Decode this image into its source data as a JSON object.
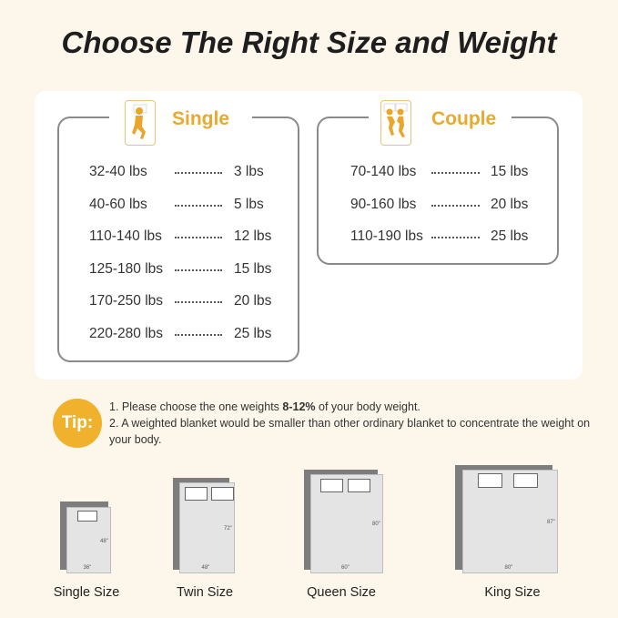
{
  "title": "Choose The Right Size and Weight",
  "accent_color": "#f0b12c",
  "single": {
    "label": "Single",
    "icon": "single-sleeper-icon",
    "rows": [
      {
        "weight": "32-40 lbs",
        "blanket": "3 lbs"
      },
      {
        "weight": "40-60 lbs",
        "blanket": "5 lbs"
      },
      {
        "weight": "110-140 lbs",
        "blanket": "12 lbs"
      },
      {
        "weight": "125-180 lbs",
        "blanket": "15 lbs"
      },
      {
        "weight": "170-250 lbs",
        "blanket": "20 lbs"
      },
      {
        "weight": "220-280 lbs",
        "blanket": "25 lbs"
      }
    ]
  },
  "couple": {
    "label": "Couple",
    "icon": "couple-sleepers-icon",
    "rows": [
      {
        "weight": "70-140 lbs",
        "blanket": "15 lbs"
      },
      {
        "weight": "90-160 lbs",
        "blanket": "20 lbs"
      },
      {
        "weight": "110-190 lbs",
        "blanket": "25 lbs"
      }
    ]
  },
  "tip": {
    "badge": "Tip:",
    "line1_pre": "1. Please choose the one weights ",
    "line1_bold": "8-12%",
    "line1_post": " of your body weight.",
    "line2": "2. A weighted blanket would be smaller than  other ordinary blanket to concentrate the weight on your body."
  },
  "beds": [
    {
      "label": "Single Size",
      "width": "36\"",
      "length": "48\""
    },
    {
      "label": "Twin Size",
      "width": "48\"",
      "length": "72\""
    },
    {
      "label": "Queen Size",
      "width": "60\"",
      "length": "80\""
    },
    {
      "label": "King Size",
      "width": "80\"",
      "length": "87\""
    }
  ]
}
